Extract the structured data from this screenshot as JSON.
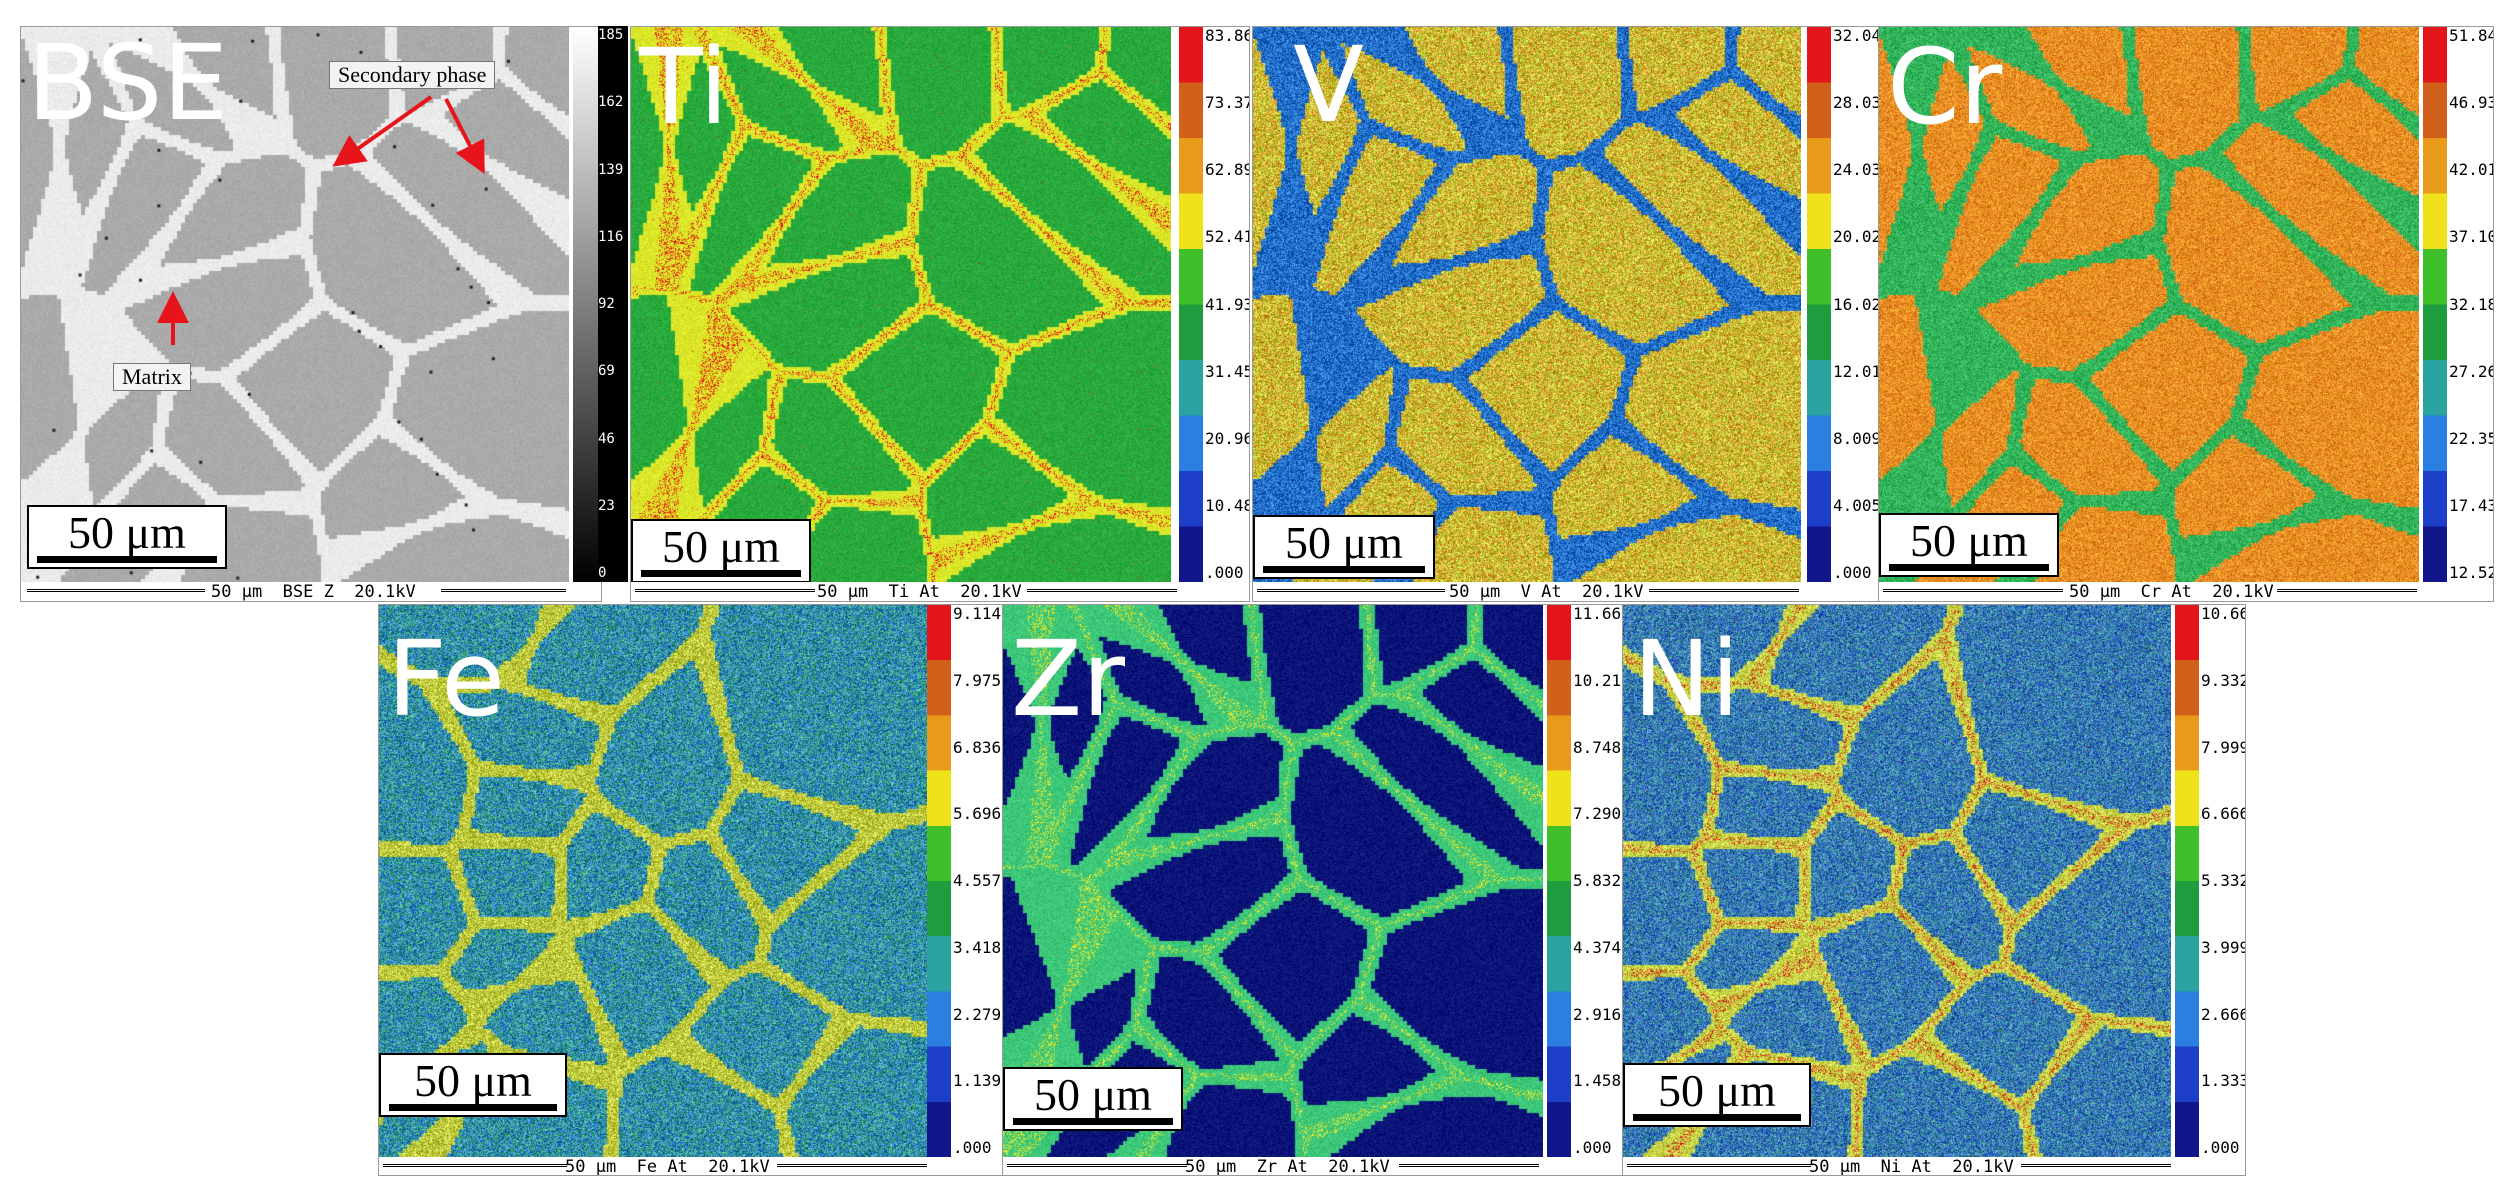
{
  "panels": [
    {
      "id": "bse",
      "symbol": "BSE",
      "scale_label": "50 μm",
      "footer": "50 μm  BSE Z  20.1kV",
      "colorbar": [
        "185",
        "162",
        "139",
        "116",
        "92",
        "69",
        "46",
        "23",
        "0"
      ],
      "palette": "gray",
      "annotations": {
        "secondary": "Secondary phase",
        "matrix": "Matrix"
      }
    },
    {
      "id": "ti",
      "symbol": "Ti",
      "scale_label": "50 μm",
      "footer": "50 μm  Ti At  20.1kV",
      "colorbar": [
        "83.86",
        "73.37",
        "62.89",
        "52.41",
        "41.93",
        "31.45",
        "20.96",
        "10.48",
        ".000"
      ],
      "palette": "ti"
    },
    {
      "id": "v",
      "symbol": "V",
      "scale_label": "50 μm",
      "footer": "50 μm  V At  20.1kV",
      "colorbar": [
        "32.04",
        "28.03",
        "24.03",
        "20.02",
        "16.02",
        "12.01",
        "8.009",
        "4.005",
        ".000"
      ],
      "palette": "v"
    },
    {
      "id": "cr",
      "symbol": "Cr",
      "scale_label": "50 μm",
      "footer": "50 μm  Cr At  20.1kV",
      "colorbar": [
        "51.84",
        "46.93",
        "42.01",
        "37.10",
        "32.18",
        "27.26",
        "22.35",
        "17.43",
        "12.52"
      ],
      "palette": "cr"
    },
    {
      "id": "fe",
      "symbol": "Fe",
      "scale_label": "50 μm",
      "footer": "50 μm  Fe At  20.1kV",
      "colorbar": [
        "9.114",
        "7.975",
        "6.836",
        "5.696",
        "4.557",
        "3.418",
        "2.279",
        "1.139",
        ".000"
      ],
      "palette": "fe"
    },
    {
      "id": "zr",
      "symbol": "Zr",
      "scale_label": "50 μm",
      "footer": "50 μm  Zr At  20.1kV",
      "colorbar": [
        "11.66",
        "10.21",
        "8.748",
        "7.290",
        "5.832",
        "4.374",
        "2.916",
        "1.458",
        ".000"
      ],
      "palette": "zr"
    },
    {
      "id": "ni",
      "symbol": "Ni",
      "scale_label": "50 μm",
      "footer": "50 μm  Ni At  20.1kV",
      "colorbar": [
        "10.66",
        "9.332",
        "7.999",
        "6.666",
        "5.332",
        "3.999",
        "2.666",
        "1.333",
        ".000"
      ],
      "palette": "ni"
    }
  ],
  "colors": {
    "arrow": "#e8141b",
    "colorbar_stops": [
      "#e4141b",
      "#d0601a",
      "#e89b1b",
      "#f0e21a",
      "#3fbf2a",
      "#1f9c3e",
      "#2aa29f",
      "#2a7fe0",
      "#1d3fc8",
      "#11168a"
    ]
  }
}
